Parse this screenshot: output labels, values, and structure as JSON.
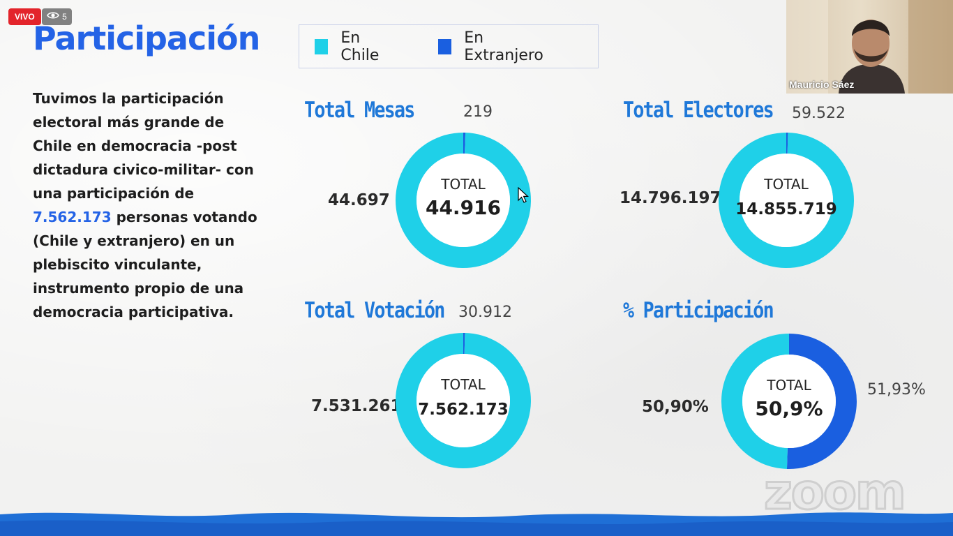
{
  "overlay": {
    "live_label": "VIVO",
    "viewer_count": "5"
  },
  "slide": {
    "title": "Participación",
    "paragraph_before": "Tuvimos la participación electoral más grande de Chile en democracia -post dictadura civico-militar- con una participación de ",
    "paragraph_highlight": "7.562.173",
    "paragraph_after": " personas votando (Chile y extranjero) en un plebiscito vinculante, instrumento propio de una democracia participativa.",
    "legend": {
      "chile": "En Chile",
      "extranjero": "En Extranjero"
    },
    "colors": {
      "chile": "#1fd0e8",
      "extranjero": "#1a5fe0",
      "accent": "#2463e6"
    },
    "total_label": "TOTAL",
    "charts": [
      {
        "title": "Total Mesas",
        "extranjero": "219",
        "chile": "44.697",
        "total": "44.916",
        "chile_fraction": 0.995
      },
      {
        "title": "Total Electores",
        "extranjero": "59.522",
        "chile": "14.796.197",
        "total": "14.855.719",
        "chile_fraction": 0.996
      },
      {
        "title": "Total Votación",
        "extranjero": "30.912",
        "chile": "7.531.261",
        "total": "7.562.173",
        "chile_fraction": 0.996
      },
      {
        "title": "% Participación",
        "extranjero": "51,93%",
        "chile": "50,90%",
        "total": "50,9%",
        "chile_fraction": 0.495
      }
    ]
  },
  "video": {
    "participant_name": "Mauricio Sáez"
  },
  "watermark": "zoom"
}
